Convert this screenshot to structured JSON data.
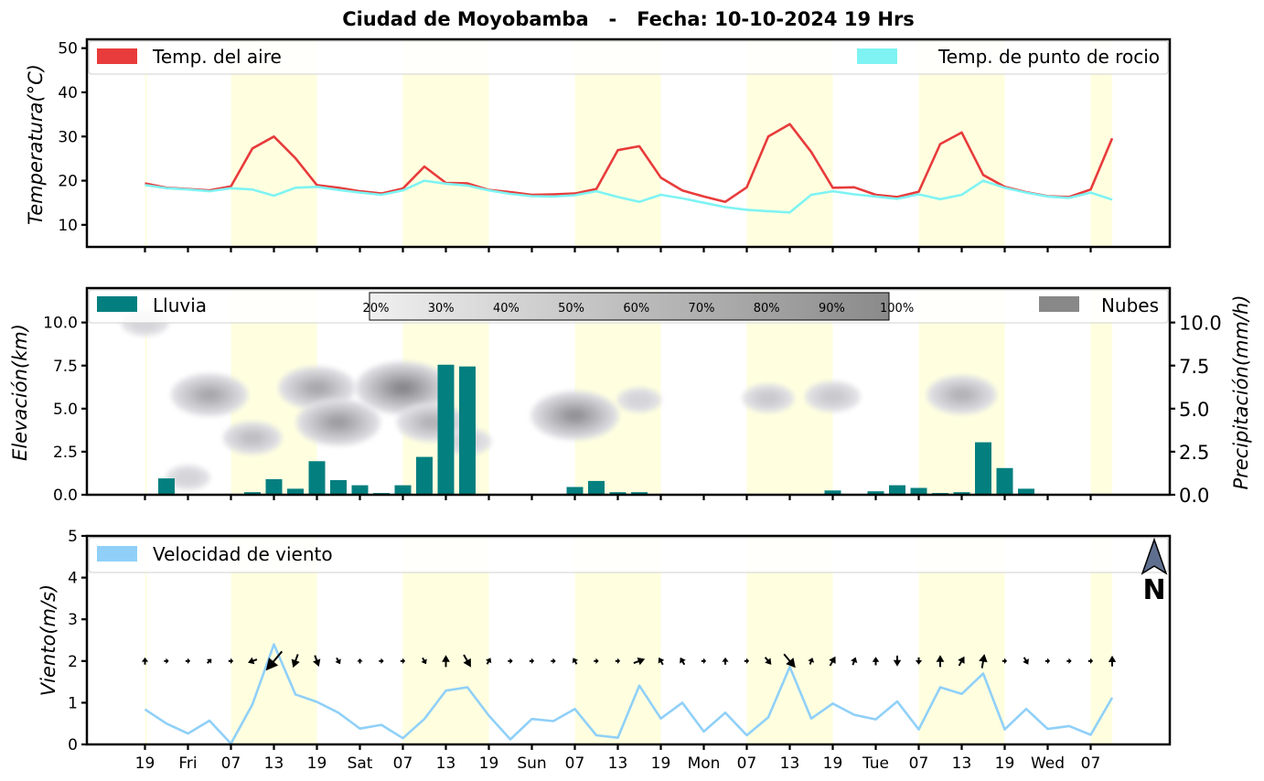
{
  "title": "Ciudad de Moyobamba   -   Fecha: 10-10-2024 19 Hrs",
  "colors": {
    "air_temp": "#e83b3b",
    "dew_point": "#7ff3f3",
    "rain": "#047f7f",
    "clouds": "#888888",
    "wind": "#90d0f8",
    "day_shade": "#ffffe0",
    "arrow": "#000000"
  },
  "x_ticks": [
    "19",
    "Fri",
    "07",
    "13",
    "19",
    "Sat",
    "07",
    "13",
    "19",
    "Sun",
    "07",
    "13",
    "19",
    "Mon",
    "07",
    "13",
    "19",
    "Tue",
    "07",
    "13",
    "19",
    "Wed",
    "07"
  ],
  "north_label": "N",
  "chart_data": [
    {
      "id": "temperature",
      "type": "line",
      "ylabel": "Temperatura(°C)",
      "ylim": [
        5,
        52
      ],
      "yticks": [
        10,
        20,
        30,
        40,
        50
      ],
      "legend_left": "Temp. del aire",
      "legend_right": "Temp. de punto de rocio",
      "x_hours": [
        0,
        3,
        6,
        9,
        12,
        15,
        18,
        21,
        24,
        27,
        30,
        33,
        36,
        39,
        42,
        45,
        48,
        51,
        54,
        57,
        60,
        63,
        66,
        69,
        72,
        75,
        78,
        81,
        84,
        87,
        90,
        93,
        96,
        99,
        102,
        105,
        108,
        111,
        114,
        117,
        120,
        123,
        126,
        129,
        132,
        135
      ],
      "series": [
        {
          "name": "Temp. del aire",
          "values": [
            19.4,
            18.4,
            18.1,
            17.8,
            18.7,
            27.3,
            30.0,
            25.1,
            19.0,
            18.4,
            17.6,
            17.1,
            18.2,
            23.2,
            19.5,
            19.4,
            17.9,
            17.4,
            16.8,
            16.9,
            17.1,
            18.1,
            26.9,
            27.8,
            20.7,
            17.8,
            16.4,
            15.2,
            18.5,
            30.0,
            32.8,
            26.5,
            18.4,
            18.5,
            16.8,
            16.3,
            17.5,
            28.3,
            30.9,
            21.3,
            18.6,
            17.4,
            16.5,
            16.3,
            18.0,
            29.6
          ]
        },
        {
          "name": "Temp. de punto de rocio",
          "values": [
            19.0,
            18.3,
            18.0,
            17.6,
            18.3,
            18.0,
            16.6,
            18.4,
            18.6,
            17.9,
            17.3,
            16.8,
            17.8,
            20.0,
            19.3,
            18.9,
            17.8,
            17.0,
            16.5,
            16.4,
            16.7,
            17.6,
            16.3,
            15.2,
            16.8,
            16.0,
            15.0,
            14.0,
            13.4,
            13.1,
            12.8,
            16.8,
            17.6,
            16.9,
            16.4,
            15.9,
            16.9,
            15.8,
            16.8,
            20.0,
            18.4,
            17.3,
            16.4,
            16.1,
            17.3,
            15.7
          ]
        }
      ]
    },
    {
      "id": "rain_clouds",
      "type": "bar",
      "ylabel_left": "Elevación(km)",
      "ylabel_right": "Precipitación(mm/h)",
      "ylim": [
        0,
        12
      ],
      "yticks": [
        "0.0",
        "2.5",
        "5.0",
        "7.5",
        "10.0"
      ],
      "legend_left": "Lluvia",
      "legend_right": "Nubes",
      "cloud_scale": [
        "20%",
        "30%",
        "40%",
        "50%",
        "60%",
        "70%",
        "80%",
        "90%",
        "100%"
      ],
      "rain_values": [
        0,
        0.95,
        0,
        0,
        0,
        0.15,
        0.9,
        0.35,
        1.95,
        0.85,
        0.55,
        0.1,
        0.55,
        2.2,
        7.55,
        7.45,
        0.05,
        0,
        0,
        0,
        0.45,
        0.8,
        0.15,
        0.15,
        0.05,
        0,
        0,
        0,
        0,
        0.05,
        0.05,
        0,
        0.25,
        0,
        0.2,
        0.55,
        0.4,
        0.1,
        0.15,
        3.05,
        1.55,
        0.35,
        0,
        0,
        0,
        0
      ],
      "cloud_cells": [
        {
          "hour": 0,
          "km": 10.0,
          "cover": 30
        },
        {
          "hour": 6,
          "km": 1.0,
          "cover": 25
        },
        {
          "hour": 9,
          "km": 5.8,
          "cover": 70
        },
        {
          "hour": 15,
          "km": 3.3,
          "cover": 45
        },
        {
          "hour": 24,
          "km": 6.2,
          "cover": 70
        },
        {
          "hour": 27,
          "km": 4.2,
          "cover": 80
        },
        {
          "hour": 36,
          "km": 6.2,
          "cover": 95
        },
        {
          "hour": 40,
          "km": 4.2,
          "cover": 60
        },
        {
          "hour": 45,
          "km": 3.1,
          "cover": 30
        },
        {
          "hour": 60,
          "km": 4.6,
          "cover": 85
        },
        {
          "hour": 69,
          "km": 5.5,
          "cover": 25
        },
        {
          "hour": 87,
          "km": 5.6,
          "cover": 35
        },
        {
          "hour": 96,
          "km": 5.7,
          "cover": 40
        },
        {
          "hour": 114,
          "km": 5.8,
          "cover": 60
        }
      ]
    },
    {
      "id": "wind",
      "type": "line",
      "ylabel": "Viento(m/s)",
      "ylim": [
        0,
        5
      ],
      "yticks": [
        0,
        1,
        2,
        3,
        4,
        5
      ],
      "legend_left": "Velocidad de viento",
      "series": [
        {
          "name": "Velocidad de viento",
          "values": [
            0.84,
            0.5,
            0.26,
            0.57,
            0.02,
            0.96,
            2.4,
            1.2,
            1.02,
            0.76,
            0.38,
            0.47,
            0.15,
            0.61,
            1.29,
            1.37,
            0.69,
            0.12,
            0.61,
            0.56,
            0.85,
            0.22,
            0.16,
            1.41,
            0.62,
            1.0,
            0.31,
            0.76,
            0.22,
            0.65,
            1.86,
            0.62,
            0.98,
            0.71,
            0.6,
            1.03,
            0.36,
            1.37,
            1.21,
            1.7,
            0.36,
            0.85,
            0.37,
            0.44,
            0.23,
            1.12
          ]
        }
      ],
      "arrow_level": 2,
      "wind_dir_deg": [
        90,
        0,
        0,
        45,
        0,
        200,
        230,
        250,
        290,
        300,
        90,
        0,
        0,
        300,
        90,
        300,
        60,
        0,
        0,
        0,
        120,
        0,
        0,
        20,
        120,
        120,
        0,
        90,
        0,
        310,
        310,
        70,
        60,
        70,
        90,
        270,
        270,
        90,
        60,
        80,
        0,
        300,
        0,
        0,
        0,
        90
      ],
      "wind_arrow_size": [
        0.3,
        0.1,
        0.1,
        0.2,
        0.1,
        0.5,
        1.8,
        0.9,
        0.7,
        0.3,
        0.1,
        0.1,
        0.1,
        0.3,
        0.7,
        0.9,
        0.3,
        0.1,
        0.1,
        0.1,
        0.3,
        0.1,
        0.1,
        0.7,
        0.4,
        0.4,
        0.1,
        0.3,
        0.1,
        0.5,
        1.2,
        0.3,
        0.6,
        0.4,
        0.4,
        0.6,
        0.3,
        0.7,
        0.6,
        0.9,
        0.1,
        0.4,
        0.1,
        0.1,
        0.1,
        0.6
      ]
    }
  ]
}
